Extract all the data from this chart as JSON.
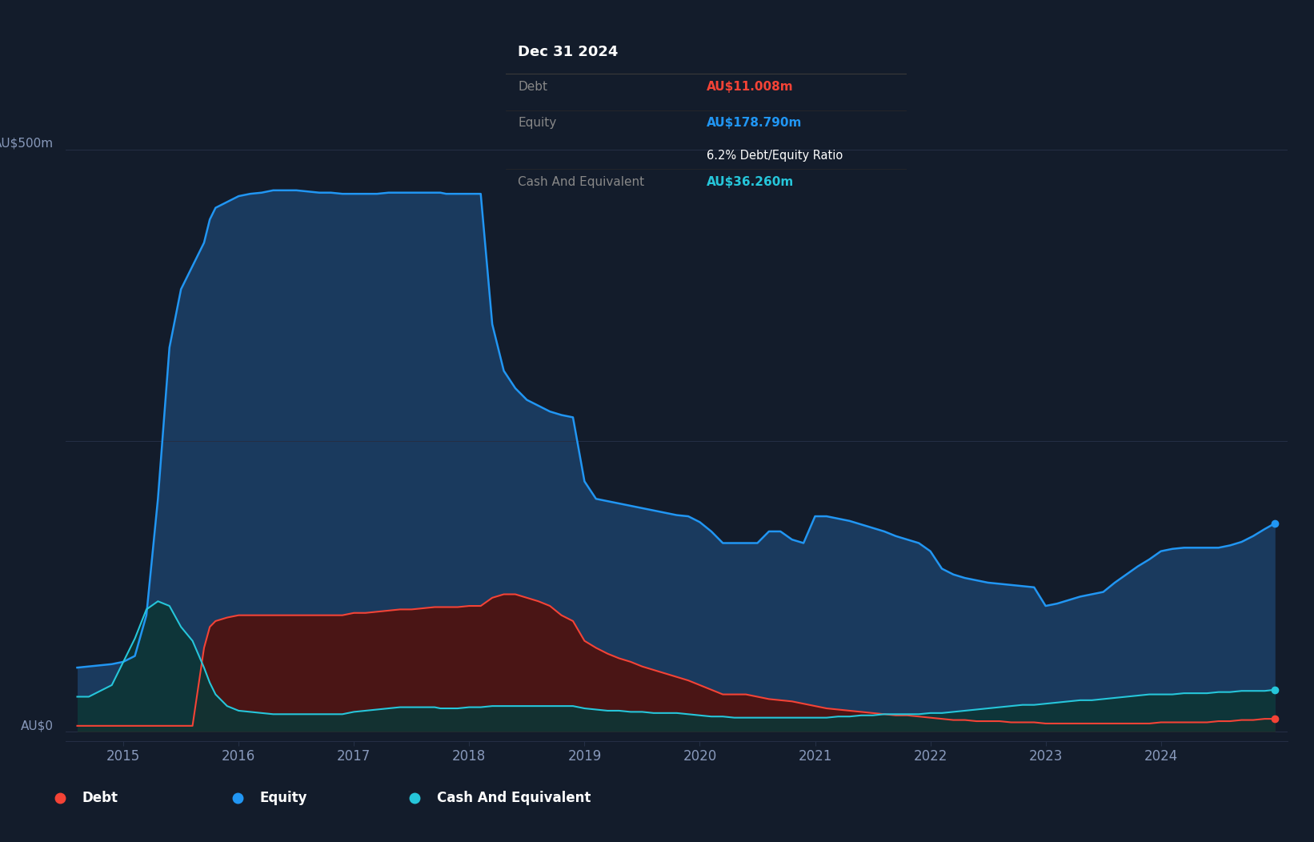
{
  "background_color": "#131c2b",
  "plot_bg_color": "#131c2b",
  "grid_color": "#252f45",
  "equity_color": "#2196f3",
  "debt_color": "#f44336",
  "cash_color": "#26c6da",
  "equity_fill": "#1a3a5e",
  "debt_fill": "#4a1515",
  "cash_fill": "#0d3535",
  "tooltip_bg": "#050505",
  "tooltip_border": "#2a2a2a",
  "tooltip_title": "Dec 31 2024",
  "tooltip_debt_label": "Debt",
  "tooltip_debt_value": "AU$11.008m",
  "tooltip_debt_color": "#f44336",
  "tooltip_equity_label": "Equity",
  "tooltip_equity_value": "AU$178.790m",
  "tooltip_equity_color": "#2196f3",
  "tooltip_ratio": "6.2% Debt/Equity Ratio",
  "tooltip_cash_label": "Cash And Equivalent",
  "tooltip_cash_value": "AU$36.260m",
  "tooltip_cash_color": "#26c6da",
  "legend_debt": "Debt",
  "legend_equity": "Equity",
  "legend_cash": "Cash And Equivalent",
  "legend_bg": "#1e2a3a",
  "years": [
    2014.6,
    2014.7,
    2014.8,
    2014.9,
    2015.0,
    2015.1,
    2015.2,
    2015.3,
    2015.4,
    2015.5,
    2015.6,
    2015.7,
    2015.75,
    2015.8,
    2015.9,
    2016.0,
    2016.1,
    2016.2,
    2016.3,
    2016.4,
    2016.5,
    2016.6,
    2016.7,
    2016.8,
    2016.9,
    2017.0,
    2017.1,
    2017.2,
    2017.3,
    2017.4,
    2017.5,
    2017.6,
    2017.7,
    2017.75,
    2017.8,
    2017.9,
    2018.0,
    2018.1,
    2018.2,
    2018.3,
    2018.4,
    2018.5,
    2018.6,
    2018.7,
    2018.8,
    2018.9,
    2019.0,
    2019.1,
    2019.2,
    2019.3,
    2019.4,
    2019.5,
    2019.6,
    2019.7,
    2019.8,
    2019.9,
    2020.0,
    2020.1,
    2020.2,
    2020.3,
    2020.4,
    2020.5,
    2020.6,
    2020.7,
    2020.8,
    2020.9,
    2021.0,
    2021.1,
    2021.2,
    2021.3,
    2021.4,
    2021.5,
    2021.6,
    2021.7,
    2021.8,
    2021.9,
    2022.0,
    2022.1,
    2022.2,
    2022.3,
    2022.4,
    2022.5,
    2022.6,
    2022.7,
    2022.8,
    2022.9,
    2023.0,
    2023.1,
    2023.2,
    2023.3,
    2023.4,
    2023.5,
    2023.6,
    2023.7,
    2023.8,
    2023.9,
    2024.0,
    2024.1,
    2024.2,
    2024.3,
    2024.4,
    2024.5,
    2024.6,
    2024.7,
    2024.8,
    2024.9,
    2024.99
  ],
  "equity": [
    55,
    56,
    57,
    58,
    60,
    65,
    100,
    200,
    330,
    380,
    400,
    420,
    440,
    450,
    455,
    460,
    462,
    463,
    465,
    465,
    465,
    464,
    463,
    463,
    462,
    462,
    462,
    462,
    463,
    463,
    463,
    463,
    463,
    463,
    462,
    462,
    462,
    462,
    350,
    310,
    295,
    285,
    280,
    275,
    272,
    270,
    215,
    200,
    198,
    196,
    194,
    192,
    190,
    188,
    186,
    185,
    180,
    172,
    162,
    162,
    162,
    162,
    172,
    172,
    165,
    162,
    185,
    185,
    183,
    181,
    178,
    175,
    172,
    168,
    165,
    162,
    155,
    140,
    135,
    132,
    130,
    128,
    127,
    126,
    125,
    124,
    108,
    110,
    113,
    116,
    118,
    120,
    128,
    135,
    142,
    148,
    155,
    157,
    158,
    158,
    158,
    158,
    160,
    163,
    168,
    174,
    179
  ],
  "debt": [
    5,
    5,
    5,
    5,
    5,
    5,
    5,
    5,
    5,
    5,
    5,
    72,
    90,
    95,
    98,
    100,
    100,
    100,
    100,
    100,
    100,
    100,
    100,
    100,
    100,
    102,
    102,
    103,
    104,
    105,
    105,
    106,
    107,
    107,
    107,
    107,
    108,
    108,
    115,
    118,
    118,
    115,
    112,
    108,
    100,
    95,
    78,
    72,
    67,
    63,
    60,
    56,
    53,
    50,
    47,
    44,
    40,
    36,
    32,
    32,
    32,
    30,
    28,
    27,
    26,
    24,
    22,
    20,
    19,
    18,
    17,
    16,
    15,
    14,
    14,
    13,
    12,
    11,
    10,
    10,
    9,
    9,
    9,
    8,
    8,
    8,
    7,
    7,
    7,
    7,
    7,
    7,
    7,
    7,
    7,
    7,
    8,
    8,
    8,
    8,
    8,
    9,
    9,
    10,
    10,
    11,
    11
  ],
  "cash": [
    30,
    30,
    35,
    40,
    60,
    80,
    105,
    112,
    108,
    90,
    78,
    55,
    42,
    32,
    22,
    18,
    17,
    16,
    15,
    15,
    15,
    15,
    15,
    15,
    15,
    17,
    18,
    19,
    20,
    21,
    21,
    21,
    21,
    20,
    20,
    20,
    21,
    21,
    22,
    22,
    22,
    22,
    22,
    22,
    22,
    22,
    20,
    19,
    18,
    18,
    17,
    17,
    16,
    16,
    16,
    15,
    14,
    13,
    13,
    12,
    12,
    12,
    12,
    12,
    12,
    12,
    12,
    12,
    13,
    13,
    14,
    14,
    15,
    15,
    15,
    15,
    16,
    16,
    17,
    18,
    19,
    20,
    21,
    22,
    23,
    23,
    24,
    25,
    26,
    27,
    27,
    28,
    29,
    30,
    31,
    32,
    32,
    32,
    33,
    33,
    33,
    34,
    34,
    35,
    35,
    35,
    36
  ],
  "xlim": [
    2014.5,
    2025.1
  ],
  "ylim": [
    -8,
    520
  ],
  "xticks": [
    2015,
    2016,
    2017,
    2018,
    2019,
    2020,
    2021,
    2022,
    2023,
    2024
  ],
  "y500_val": 500,
  "y0_val": 0
}
